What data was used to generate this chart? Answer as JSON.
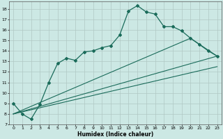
{
  "title": "",
  "xlabel": "Humidex (Indice chaleur)",
  "background_color": "#cce8e4",
  "grid_color": "#b0c8c4",
  "line_color": "#1a6b5a",
  "xlim": [
    -0.5,
    23.5
  ],
  "ylim": [
    7.0,
    18.7
  ],
  "yticks": [
    7,
    8,
    9,
    10,
    11,
    12,
    13,
    14,
    15,
    16,
    17,
    18
  ],
  "xticks": [
    0,
    1,
    2,
    3,
    4,
    5,
    6,
    7,
    8,
    9,
    10,
    11,
    12,
    13,
    14,
    15,
    16,
    17,
    18,
    19,
    20,
    21,
    22,
    23
  ],
  "line1_x": [
    0,
    1,
    2,
    3,
    4,
    5,
    6,
    7,
    8,
    9,
    10,
    11,
    12,
    13,
    14,
    15,
    16,
    17,
    18,
    19,
    20,
    21,
    22,
    23
  ],
  "line1_y": [
    9.0,
    8.0,
    7.5,
    8.9,
    11.0,
    12.8,
    13.3,
    13.1,
    13.9,
    14.0,
    14.3,
    14.5,
    15.5,
    17.8,
    18.3,
    17.7,
    17.5,
    16.3,
    16.3,
    15.9,
    15.2,
    14.6,
    14.0,
    13.5
  ],
  "line2_x": [
    0,
    23
  ],
  "line2_y": [
    8.0,
    13.5
  ],
  "line3_x": [
    0,
    23
  ],
  "line3_y": [
    8.0,
    12.5
  ],
  "line4_x": [
    0,
    20,
    23
  ],
  "line4_y": [
    8.0,
    15.2,
    13.5
  ]
}
